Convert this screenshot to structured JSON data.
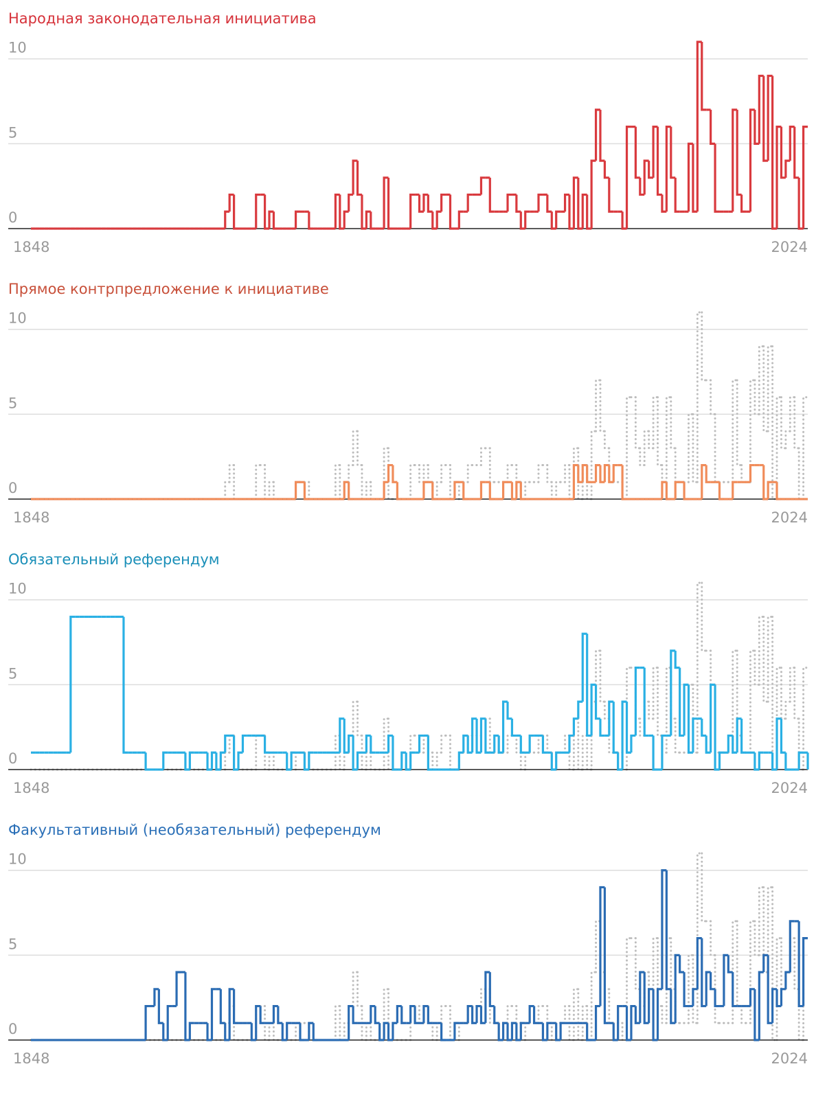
{
  "chart_data": [
    {
      "type": "step",
      "title": "Народная законодательная инициатива",
      "color": "#d93a3e",
      "title_color": "#d6323a",
      "xlim": [
        1848,
        2024
      ],
      "xticks": [
        1848,
        2024
      ],
      "ylim": [
        0,
        11
      ],
      "yticks": [
        0,
        5,
        10
      ],
      "grid": true,
      "x": [
        1848,
        1849,
        1850,
        1851,
        1852,
        1853,
        1854,
        1855,
        1856,
        1857,
        1858,
        1859,
        1860,
        1861,
        1862,
        1863,
        1864,
        1865,
        1866,
        1867,
        1868,
        1869,
        1870,
        1871,
        1872,
        1873,
        1874,
        1875,
        1876,
        1877,
        1878,
        1879,
        1880,
        1881,
        1882,
        1883,
        1884,
        1885,
        1886,
        1887,
        1888,
        1889,
        1890,
        1891,
        1892,
        1893,
        1894,
        1895,
        1896,
        1897,
        1898,
        1899,
        1900,
        1901,
        1902,
        1903,
        1904,
        1905,
        1906,
        1907,
        1908,
        1909,
        1910,
        1911,
        1912,
        1913,
        1914,
        1915,
        1916,
        1917,
        1918,
        1919,
        1920,
        1921,
        1922,
        1923,
        1924,
        1925,
        1926,
        1927,
        1928,
        1929,
        1930,
        1931,
        1932,
        1933,
        1934,
        1935,
        1936,
        1937,
        1938,
        1939,
        1940,
        1941,
        1942,
        1943,
        1944,
        1945,
        1946,
        1947,
        1948,
        1949,
        1950,
        1951,
        1952,
        1953,
        1954,
        1955,
        1956,
        1957,
        1958,
        1959,
        1960,
        1961,
        1962,
        1963,
        1964,
        1965,
        1966,
        1967,
        1968,
        1969,
        1970,
        1971,
        1972,
        1973,
        1974,
        1975,
        1976,
        1977,
        1978,
        1979,
        1980,
        1981,
        1982,
        1983,
        1984,
        1985,
        1986,
        1987,
        1988,
        1989,
        1990,
        1991,
        1992,
        1993,
        1994,
        1995,
        1996,
        1997,
        1998,
        1999,
        2000,
        2001,
        2002,
        2003,
        2004,
        2005,
        2006,
        2007,
        2008,
        2009,
        2010,
        2011,
        2012,
        2013,
        2014,
        2015,
        2016,
        2017,
        2018,
        2019,
        2020,
        2021,
        2022,
        2023,
        2024
      ],
      "values": [
        0,
        0,
        0,
        0,
        0,
        0,
        0,
        0,
        0,
        0,
        0,
        0,
        0,
        0,
        0,
        0,
        0,
        0,
        0,
        0,
        0,
        0,
        0,
        0,
        0,
        0,
        0,
        0,
        0,
        0,
        0,
        0,
        0,
        0,
        0,
        0,
        0,
        0,
        0,
        0,
        0,
        0,
        0,
        0,
        1,
        2,
        0,
        0,
        0,
        0,
        0,
        2,
        2,
        0,
        1,
        0,
        0,
        0,
        0,
        0,
        1,
        1,
        1,
        0,
        0,
        0,
        0,
        0,
        0,
        2,
        0,
        1,
        2,
        4,
        2,
        0,
        1,
        0,
        0,
        0,
        3,
        0,
        0,
        0,
        0,
        0,
        2,
        2,
        1,
        2,
        1,
        0,
        1,
        2,
        2,
        0,
        0,
        1,
        1,
        2,
        2,
        2,
        3,
        3,
        1,
        1,
        1,
        1,
        2,
        2,
        1,
        0,
        1,
        1,
        1,
        2,
        2,
        1,
        0,
        1,
        1,
        2,
        0,
        3,
        0,
        2,
        0,
        4,
        7,
        4,
        3,
        1,
        1,
        1,
        0,
        6,
        6,
        3,
        2,
        4,
        3,
        6,
        2,
        1,
        6,
        3,
        1,
        1,
        1,
        5,
        1,
        11,
        7,
        7,
        5,
        1,
        1,
        1,
        1,
        7,
        2,
        1,
        1,
        7,
        5,
        9,
        4,
        9,
        0,
        6,
        3,
        4,
        6,
        3,
        0,
        6,
        6
      ]
    },
    {
      "type": "step",
      "title": "Прямое контрпредложение к инициативе",
      "color": "#f08c5a",
      "title_color": "#c8503a",
      "xlim": [
        1848,
        2024
      ],
      "xticks": [
        1848,
        2024
      ],
      "ylim": [
        0,
        11
      ],
      "yticks": [
        0,
        5,
        10
      ],
      "grid": true,
      "x": [
        1848,
        1849,
        1850,
        1851,
        1852,
        1853,
        1854,
        1855,
        1856,
        1857,
        1858,
        1859,
        1860,
        1861,
        1862,
        1863,
        1864,
        1865,
        1866,
        1867,
        1868,
        1869,
        1870,
        1871,
        1872,
        1873,
        1874,
        1875,
        1876,
        1877,
        1878,
        1879,
        1880,
        1881,
        1882,
        1883,
        1884,
        1885,
        1886,
        1887,
        1888,
        1889,
        1890,
        1891,
        1892,
        1893,
        1894,
        1895,
        1896,
        1897,
        1898,
        1899,
        1900,
        1901,
        1902,
        1903,
        1904,
        1905,
        1906,
        1907,
        1908,
        1909,
        1910,
        1911,
        1912,
        1913,
        1914,
        1915,
        1916,
        1917,
        1918,
        1919,
        1920,
        1921,
        1922,
        1923,
        1924,
        1925,
        1926,
        1927,
        1928,
        1929,
        1930,
        1931,
        1932,
        1933,
        1934,
        1935,
        1936,
        1937,
        1938,
        1939,
        1940,
        1941,
        1942,
        1943,
        1944,
        1945,
        1946,
        1947,
        1948,
        1949,
        1950,
        1951,
        1952,
        1953,
        1954,
        1955,
        1956,
        1957,
        1958,
        1959,
        1960,
        1961,
        1962,
        1963,
        1964,
        1965,
        1966,
        1967,
        1968,
        1969,
        1970,
        1971,
        1972,
        1973,
        1974,
        1975,
        1976,
        1977,
        1978,
        1979,
        1980,
        1981,
        1982,
        1983,
        1984,
        1985,
        1986,
        1987,
        1988,
        1989,
        1990,
        1991,
        1992,
        1993,
        1994,
        1995,
        1996,
        1997,
        1998,
        1999,
        2000,
        2001,
        2002,
        2003,
        2004,
        2005,
        2006,
        2007,
        2008,
        2009,
        2010,
        2011,
        2012,
        2013,
        2014,
        2015,
        2016,
        2017,
        2018,
        2019,
        2020,
        2021,
        2022,
        2023,
        2024
      ],
      "values": [
        0,
        0,
        0,
        0,
        0,
        0,
        0,
        0,
        0,
        0,
        0,
        0,
        0,
        0,
        0,
        0,
        0,
        0,
        0,
        0,
        0,
        0,
        0,
        0,
        0,
        0,
        0,
        0,
        0,
        0,
        0,
        0,
        0,
        0,
        0,
        0,
        0,
        0,
        0,
        0,
        0,
        0,
        0,
        0,
        0,
        0,
        0,
        0,
        0,
        0,
        0,
        0,
        0,
        0,
        0,
        0,
        0,
        0,
        0,
        0,
        1,
        1,
        0,
        0,
        0,
        0,
        0,
        0,
        0,
        0,
        0,
        1,
        0,
        0,
        0,
        0,
        0,
        0,
        0,
        0,
        1,
        2,
        1,
        0,
        0,
        0,
        0,
        0,
        0,
        1,
        1,
        0,
        0,
        0,
        0,
        0,
        1,
        1,
        0,
        0,
        0,
        0,
        1,
        1,
        0,
        0,
        0,
        1,
        1,
        0,
        1,
        0,
        0,
        0,
        0,
        0,
        0,
        0,
        0,
        0,
        0,
        0,
        0,
        2,
        1,
        2,
        1,
        1,
        2,
        1,
        2,
        1,
        2,
        2,
        0,
        0,
        0,
        0,
        0,
        0,
        0,
        0,
        0,
        1,
        0,
        0,
        1,
        1,
        0,
        0,
        0,
        0,
        2,
        1,
        1,
        1,
        0,
        0,
        0,
        1,
        1,
        1,
        1,
        2,
        2,
        2,
        0,
        1,
        1,
        0,
        0,
        0,
        0,
        0,
        0,
        0,
        0
      ]
    },
    {
      "type": "step",
      "title": "Обязательный референдум",
      "color": "#2ab0e4",
      "title_color": "#1a8fb8",
      "xlim": [
        1848,
        2024
      ],
      "xticks": [
        1848,
        2024
      ],
      "ylim": [
        0,
        11
      ],
      "yticks": [
        0,
        5,
        10
      ],
      "grid": true,
      "x": [
        1848,
        1849,
        1850,
        1851,
        1852,
        1853,
        1854,
        1855,
        1856,
        1857,
        1858,
        1859,
        1860,
        1861,
        1862,
        1863,
        1864,
        1865,
        1866,
        1867,
        1868,
        1869,
        1870,
        1871,
        1872,
        1873,
        1874,
        1875,
        1876,
        1877,
        1878,
        1879,
        1880,
        1881,
        1882,
        1883,
        1884,
        1885,
        1886,
        1887,
        1888,
        1889,
        1890,
        1891,
        1892,
        1893,
        1894,
        1895,
        1896,
        1897,
        1898,
        1899,
        1900,
        1901,
        1902,
        1903,
        1904,
        1905,
        1906,
        1907,
        1908,
        1909,
        1910,
        1911,
        1912,
        1913,
        1914,
        1915,
        1916,
        1917,
        1918,
        1919,
        1920,
        1921,
        1922,
        1923,
        1924,
        1925,
        1926,
        1927,
        1928,
        1929,
        1930,
        1931,
        1932,
        1933,
        1934,
        1935,
        1936,
        1937,
        1938,
        1939,
        1940,
        1941,
        1942,
        1943,
        1944,
        1945,
        1946,
        1947,
        1948,
        1949,
        1950,
        1951,
        1952,
        1953,
        1954,
        1955,
        1956,
        1957,
        1958,
        1959,
        1960,
        1961,
        1962,
        1963,
        1964,
        1965,
        1966,
        1967,
        1968,
        1969,
        1970,
        1971,
        1972,
        1973,
        1974,
        1975,
        1976,
        1977,
        1978,
        1979,
        1980,
        1981,
        1982,
        1983,
        1984,
        1985,
        1986,
        1987,
        1988,
        1989,
        1990,
        1991,
        1992,
        1993,
        1994,
        1995,
        1996,
        1997,
        1998,
        1999,
        2000,
        2001,
        2002,
        2003,
        2004,
        2005,
        2006,
        2007,
        2008,
        2009,
        2010,
        2011,
        2012,
        2013,
        2014,
        2015,
        2016,
        2017,
        2018,
        2019,
        2020,
        2021,
        2022,
        2023,
        2024
      ],
      "values": [
        1,
        1,
        1,
        1,
        1,
        1,
        1,
        1,
        1,
        9,
        9,
        9,
        9,
        9,
        9,
        9,
        9,
        9,
        9,
        9,
        9,
        1,
        1,
        1,
        1,
        1,
        0,
        0,
        0,
        0,
        1,
        1,
        1,
        1,
        1,
        0,
        1,
        1,
        1,
        1,
        0,
        1,
        0,
        1,
        2,
        2,
        0,
        1,
        2,
        2,
        2,
        2,
        2,
        1,
        1,
        1,
        1,
        1,
        0,
        1,
        1,
        1,
        0,
        1,
        1,
        1,
        1,
        1,
        1,
        1,
        3,
        1,
        2,
        0,
        1,
        1,
        2,
        1,
        1,
        1,
        1,
        2,
        0,
        0,
        1,
        0,
        1,
        1,
        2,
        2,
        0,
        0,
        0,
        0,
        0,
        0,
        0,
        1,
        2,
        1,
        3,
        1,
        3,
        1,
        1,
        2,
        1,
        4,
        3,
        2,
        2,
        1,
        1,
        2,
        2,
        2,
        1,
        1,
        0,
        1,
        1,
        1,
        2,
        3,
        4,
        8,
        2,
        5,
        3,
        2,
        2,
        4,
        1,
        0,
        4,
        1,
        2,
        6,
        6,
        2,
        2,
        0,
        0,
        2,
        2,
        7,
        6,
        2,
        5,
        1,
        3,
        3,
        2,
        1,
        5,
        0,
        1,
        1,
        2,
        1,
        3,
        1,
        1,
        1,
        0,
        1,
        1,
        1,
        0,
        3,
        1,
        0,
        0,
        0,
        1,
        1,
        0
      ]
    },
    {
      "type": "step",
      "title": "Факультативный (необязательный) референдум",
      "color": "#2b6cb3",
      "title_color": "#2a6fb7",
      "xlim": [
        1848,
        2024
      ],
      "xticks": [
        1848,
        2024
      ],
      "ylim": [
        0,
        11
      ],
      "yticks": [
        0,
        5,
        10
      ],
      "grid": true,
      "x": [
        1848,
        1849,
        1850,
        1851,
        1852,
        1853,
        1854,
        1855,
        1856,
        1857,
        1858,
        1859,
        1860,
        1861,
        1862,
        1863,
        1864,
        1865,
        1866,
        1867,
        1868,
        1869,
        1870,
        1871,
        1872,
        1873,
        1874,
        1875,
        1876,
        1877,
        1878,
        1879,
        1880,
        1881,
        1882,
        1883,
        1884,
        1885,
        1886,
        1887,
        1888,
        1889,
        1890,
        1891,
        1892,
        1893,
        1894,
        1895,
        1896,
        1897,
        1898,
        1899,
        1900,
        1901,
        1902,
        1903,
        1904,
        1905,
        1906,
        1907,
        1908,
        1909,
        1910,
        1911,
        1912,
        1913,
        1914,
        1915,
        1916,
        1917,
        1918,
        1919,
        1920,
        1921,
        1922,
        1923,
        1924,
        1925,
        1926,
        1927,
        1928,
        1929,
        1930,
        1931,
        1932,
        1933,
        1934,
        1935,
        1936,
        1937,
        1938,
        1939,
        1940,
        1941,
        1942,
        1943,
        1944,
        1945,
        1946,
        1947,
        1948,
        1949,
        1950,
        1951,
        1952,
        1953,
        1954,
        1955,
        1956,
        1957,
        1958,
        1959,
        1960,
        1961,
        1962,
        1963,
        1964,
        1965,
        1966,
        1967,
        1968,
        1969,
        1970,
        1971,
        1972,
        1973,
        1974,
        1975,
        1976,
        1977,
        1978,
        1979,
        1980,
        1981,
        1982,
        1983,
        1984,
        1985,
        1986,
        1987,
        1988,
        1989,
        1990,
        1991,
        1992,
        1993,
        1994,
        1995,
        1996,
        1997,
        1998,
        1999,
        2000,
        2001,
        2002,
        2003,
        2004,
        2005,
        2006,
        2007,
        2008,
        2009,
        2010,
        2011,
        2012,
        2013,
        2014,
        2015,
        2016,
        2017,
        2018,
        2019,
        2020,
        2021,
        2022,
        2023,
        2024
      ],
      "values": [
        0,
        0,
        0,
        0,
        0,
        0,
        0,
        0,
        0,
        0,
        0,
        0,
        0,
        0,
        0,
        0,
        0,
        0,
        0,
        0,
        0,
        0,
        0,
        0,
        0,
        0,
        2,
        2,
        3,
        1,
        0,
        2,
        2,
        4,
        4,
        0,
        1,
        1,
        1,
        1,
        0,
        3,
        3,
        1,
        0,
        3,
        1,
        1,
        1,
        1,
        0,
        2,
        1,
        1,
        1,
        2,
        1,
        0,
        1,
        1,
        1,
        0,
        0,
        1,
        0,
        0,
        0,
        0,
        0,
        0,
        0,
        0,
        2,
        1,
        1,
        1,
        1,
        2,
        1,
        0,
        1,
        0,
        1,
        2,
        1,
        1,
        2,
        1,
        1,
        2,
        1,
        1,
        1,
        0,
        0,
        0,
        1,
        1,
        1,
        2,
        1,
        2,
        1,
        4,
        2,
        1,
        0,
        1,
        0,
        1,
        0,
        1,
        1,
        2,
        1,
        1,
        0,
        1,
        1,
        0,
        1,
        1,
        1,
        1,
        1,
        1,
        0,
        0,
        2,
        9,
        1,
        1,
        0,
        2,
        2,
        0,
        2,
        1,
        4,
        1,
        3,
        0,
        3,
        10,
        3,
        1,
        5,
        4,
        2,
        2,
        3,
        6,
        2,
        4,
        3,
        2,
        2,
        5,
        4,
        2,
        2,
        2,
        2,
        3,
        0,
        4,
        5,
        1,
        3,
        2,
        3,
        4,
        7,
        7,
        2,
        6,
        6
      ]
    }
  ]
}
